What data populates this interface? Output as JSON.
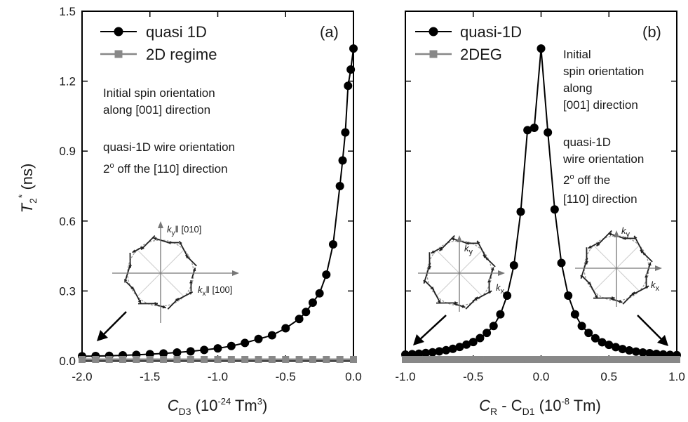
{
  "figure": {
    "ylabel": {
      "main": "T",
      "sub": "2",
      "sup": "*",
      "unit": " (ns)"
    },
    "yticks": [
      "0.0",
      "0.3",
      "0.6",
      "0.9",
      "1.2",
      "1.5"
    ]
  },
  "chart_data": [
    {
      "type": "line",
      "panel_label": "(a)",
      "xlabel": {
        "main": "C",
        "sub": "D3",
        "unit_pre": " (10",
        "unit_exp": "-24",
        "unit_post": " Tm",
        "unit_exp2": "3",
        "unit_close": ")"
      },
      "ylabel": "T2* (ns)",
      "xlim": [
        -2.0,
        0.0
      ],
      "ylim": [
        0.0,
        1.5
      ],
      "xticks": [
        "-2.0",
        "-1.5",
        "-1.0",
        "-0.5",
        "0.0"
      ],
      "legend_position": "top-left",
      "legend": [
        "quasi 1D",
        "2D regime"
      ],
      "notes": [
        "Initial spin orientation",
        "along [001] direction",
        "quasi-1D wire orientation",
        "2",
        "o",
        " off the [110] direction"
      ],
      "inset": {
        "ky_label": "k",
        "ky_sub": "y",
        "ky_dir": "‖ [010]",
        "kx_label": "k",
        "kx_sub": "x",
        "kx_dir": "‖ [100]"
      },
      "series": [
        {
          "name": "quasi 1D",
          "color": "#000000",
          "marker": "circle",
          "x": [
            -2.0,
            -1.9,
            -1.8,
            -1.7,
            -1.6,
            -1.5,
            -1.4,
            -1.3,
            -1.2,
            -1.1,
            -1.0,
            -0.9,
            -0.8,
            -0.7,
            -0.6,
            -0.5,
            -0.4,
            -0.35,
            -0.3,
            -0.25,
            -0.2,
            -0.15,
            -0.1,
            -0.08,
            -0.06,
            -0.04,
            -0.02,
            0.0
          ],
          "y": [
            0.02,
            0.021,
            0.022,
            0.024,
            0.026,
            0.029,
            0.032,
            0.036,
            0.041,
            0.047,
            0.054,
            0.064,
            0.077,
            0.094,
            0.11,
            0.14,
            0.18,
            0.21,
            0.25,
            0.29,
            0.37,
            0.5,
            0.75,
            0.86,
            0.98,
            1.18,
            1.25,
            1.34
          ]
        },
        {
          "name": "2D regime",
          "color": "#888888",
          "marker": "square",
          "x": [
            -2.0,
            -1.9,
            -1.8,
            -1.7,
            -1.6,
            -1.5,
            -1.4,
            -1.3,
            -1.2,
            -1.1,
            -1.0,
            -0.9,
            -0.8,
            -0.7,
            -0.6,
            -0.5,
            -0.4,
            -0.3,
            -0.2,
            -0.1,
            0.0
          ],
          "y": [
            0.006,
            0.006,
            0.006,
            0.006,
            0.006,
            0.006,
            0.006,
            0.006,
            0.006,
            0.006,
            0.006,
            0.006,
            0.006,
            0.006,
            0.006,
            0.006,
            0.006,
            0.006,
            0.006,
            0.006,
            0.006
          ]
        }
      ]
    },
    {
      "type": "line",
      "panel_label": "(b)",
      "xlabel": {
        "main": "C",
        "sub": "R",
        "mid": " - C",
        "sub2": "D1",
        "unit_pre": " (10",
        "unit_exp": "-8",
        "unit_post": " Tm)"
      },
      "ylabel": "T2* (ns)",
      "xlim": [
        -1.0,
        1.0
      ],
      "ylim": [
        0.0,
        1.5
      ],
      "xticks": [
        "-1.0",
        "-0.5",
        "0.0",
        "0.5",
        "1.0"
      ],
      "legend_position": "top-left",
      "legend": [
        "quasi-1D",
        "2DEG"
      ],
      "notes": [
        "Initial",
        "spin orientation",
        "along",
        "[001] direction",
        "quasi-1D",
        "wire orientation",
        "2",
        "o",
        " off the",
        "[110] direction"
      ],
      "inset_left": {
        "ky_label": "k",
        "ky_sub": "y",
        "kx_label": "k",
        "kx_sub": "x"
      },
      "inset_right": {
        "ky_label": "k",
        "ky_sub": "y",
        "kx_label": "k",
        "kx_sub": "x"
      },
      "series": [
        {
          "name": "quasi-1D",
          "color": "#000000",
          "marker": "circle",
          "x": [
            -1.0,
            -0.95,
            -0.9,
            -0.85,
            -0.8,
            -0.75,
            -0.7,
            -0.65,
            -0.6,
            -0.55,
            -0.5,
            -0.45,
            -0.4,
            -0.35,
            -0.3,
            -0.25,
            -0.2,
            -0.15,
            -0.1,
            -0.05,
            0.0,
            0.05,
            0.1,
            0.15,
            0.2,
            0.25,
            0.3,
            0.35,
            0.4,
            0.45,
            0.5,
            0.55,
            0.6,
            0.65,
            0.7,
            0.75,
            0.8,
            0.85,
            0.9,
            0.95,
            1.0
          ],
          "y": [
            0.027,
            0.029,
            0.031,
            0.034,
            0.037,
            0.041,
            0.046,
            0.052,
            0.06,
            0.07,
            0.081,
            0.098,
            0.12,
            0.15,
            0.2,
            0.28,
            0.41,
            0.64,
            0.99,
            1.0,
            1.34,
            0.98,
            0.65,
            0.42,
            0.28,
            0.2,
            0.15,
            0.12,
            0.097,
            0.08,
            0.069,
            0.059,
            0.051,
            0.045,
            0.04,
            0.036,
            0.033,
            0.03,
            0.028,
            0.026,
            0.025
          ]
        },
        {
          "name": "2DEG",
          "color": "#888888",
          "marker": "square",
          "x": [
            -1.0,
            -0.95,
            -0.9,
            -0.85,
            -0.8,
            -0.75,
            -0.7,
            -0.65,
            -0.6,
            -0.55,
            -0.5,
            -0.45,
            -0.4,
            -0.35,
            -0.3,
            -0.25,
            -0.2,
            -0.15,
            -0.1,
            -0.05,
            0.0,
            0.05,
            0.1,
            0.15,
            0.2,
            0.25,
            0.3,
            0.35,
            0.4,
            0.45,
            0.5,
            0.55,
            0.6,
            0.65,
            0.7,
            0.75,
            0.8,
            0.85,
            0.9,
            0.95,
            1.0
          ],
          "y": [
            0.006,
            0.006,
            0.006,
            0.006,
            0.006,
            0.006,
            0.006,
            0.006,
            0.006,
            0.006,
            0.006,
            0.006,
            0.006,
            0.006,
            0.006,
            0.006,
            0.006,
            0.006,
            0.006,
            0.006,
            0.006,
            0.006,
            0.006,
            0.006,
            0.006,
            0.006,
            0.006,
            0.006,
            0.006,
            0.006,
            0.006,
            0.006,
            0.006,
            0.006,
            0.006,
            0.006,
            0.006,
            0.006,
            0.006,
            0.006,
            0.006
          ]
        }
      ]
    }
  ]
}
